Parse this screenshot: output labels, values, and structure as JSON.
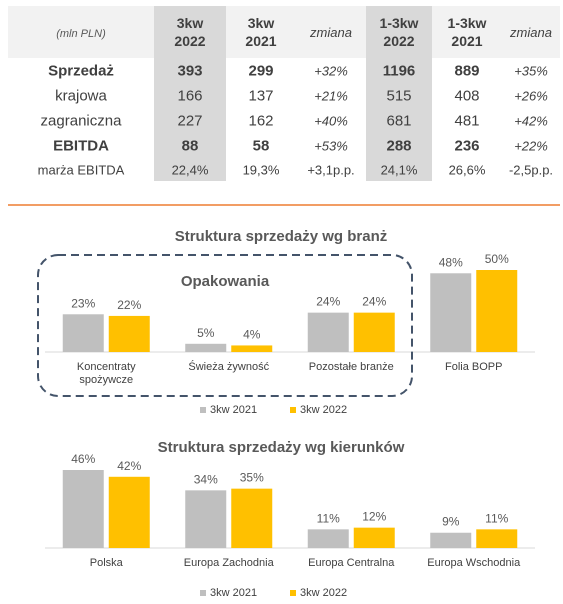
{
  "table": {
    "unit_label": "(mln PLN)",
    "columns": [
      {
        "line1": "3kw",
        "line2": "2022",
        "style": "bold",
        "shaded": true
      },
      {
        "line1": "3kw",
        "line2": "2021",
        "style": "bold",
        "shaded": false
      },
      {
        "line1": "zmiana",
        "line2": "",
        "style": "italic",
        "shaded": false
      },
      {
        "line1": "1-3kw",
        "line2": "2022",
        "style": "bold",
        "shaded": true
      },
      {
        "line1": "1-3kw",
        "line2": "2021",
        "style": "bold",
        "shaded": false
      },
      {
        "line1": "zmiana",
        "line2": "",
        "style": "italic",
        "shaded": false
      }
    ],
    "rows": [
      {
        "label": "Sprzedaż",
        "bold": true,
        "small": false,
        "cells": [
          "393",
          "299",
          "+32%",
          "1196",
          "889",
          "+35%"
        ]
      },
      {
        "label": "krajowa",
        "bold": false,
        "small": false,
        "cells": [
          "166",
          "137",
          "+21%",
          "515",
          "408",
          "+26%"
        ]
      },
      {
        "label": "zagraniczna",
        "bold": false,
        "small": false,
        "cells": [
          "227",
          "162",
          "+40%",
          "681",
          "481",
          "+42%"
        ]
      },
      {
        "label": "EBITDA",
        "bold": true,
        "small": false,
        "cells": [
          "88",
          "58",
          "+53%",
          "288",
          "236",
          "+22%"
        ]
      },
      {
        "label": "marża EBITDA",
        "bold": false,
        "small": true,
        "cells": [
          "22,4%",
          "19,3%",
          "+3,1p.p.",
          "24,1%",
          "26,6%",
          "-2,5p.p."
        ]
      }
    ],
    "colors": {
      "header_bg": "#f2f2f2",
      "shaded_col": "#d9d9d9",
      "rule": "#ed7d31"
    }
  },
  "chart_data": [
    {
      "type": "bar",
      "title": "Struktura sprzedaży wg branż",
      "group_label": "Opakowania",
      "categories": [
        "Koncentraty spożywcze",
        "Świeża żywność",
        "Pozostałe branże",
        "Folia BOPP"
      ],
      "series": [
        {
          "name": "3kw 2021",
          "values": [
            23,
            5,
            24,
            48
          ],
          "labels": [
            "23%",
            "5%",
            "24%",
            "48%"
          ],
          "color": "#bfbfbf"
        },
        {
          "name": "3kw 2022",
          "values": [
            22,
            4,
            24,
            50
          ],
          "labels": [
            "22%",
            "4%",
            "24%",
            "50%"
          ],
          "color": "#ffc000"
        }
      ],
      "ylim": [
        0,
        50
      ],
      "grid": false,
      "legend": "bottom"
    },
    {
      "type": "bar",
      "title": "Struktura sprzedaży wg kierunków",
      "categories": [
        "Polska",
        "Europa Zachodnia",
        "Europa Centralna",
        "Europa Wschodnia"
      ],
      "series": [
        {
          "name": "3kw 2021",
          "values": [
            46,
            34,
            11,
            9
          ],
          "labels": [
            "46%",
            "34%",
            "11%",
            "9%"
          ],
          "color": "#bfbfbf"
        },
        {
          "name": "3kw 2022",
          "values": [
            42,
            35,
            12,
            11
          ],
          "labels": [
            "42%",
            "35%",
            "12%",
            "11%"
          ],
          "color": "#ffc000"
        }
      ],
      "ylim": [
        0,
        46
      ],
      "grid": false,
      "legend": "bottom"
    }
  ]
}
